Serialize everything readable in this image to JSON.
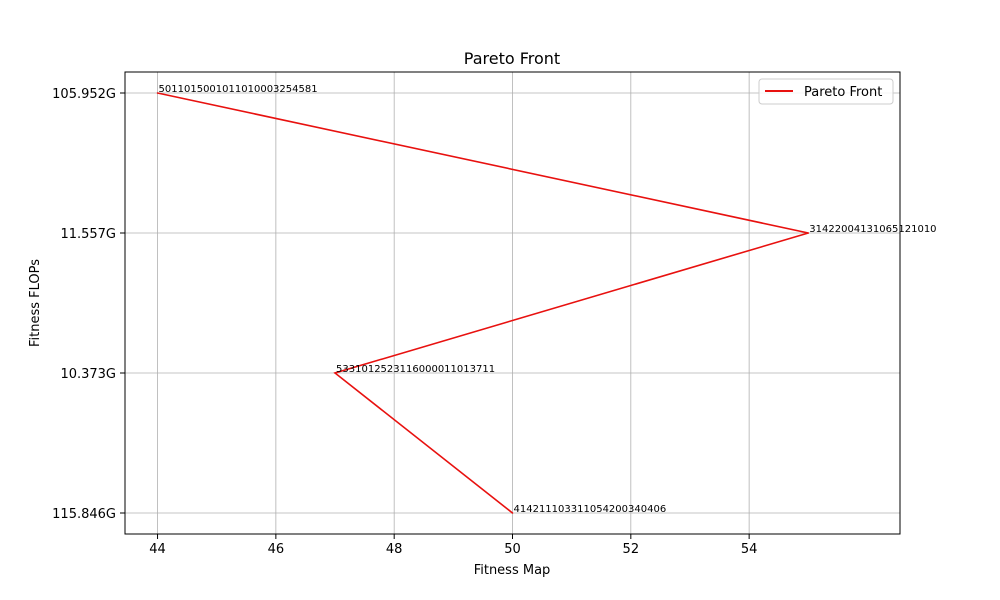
{
  "chart_data": {
    "type": "line",
    "title": "Pareto Front",
    "xlabel": "Fitness Map",
    "ylabel": "Fitness FLOPs",
    "xlim": [
      43.45,
      56.55
    ],
    "x_ticks": [
      44,
      46,
      48,
      50,
      52,
      54
    ],
    "y_categories": [
      "115.846G",
      "10.373G",
      "11.557G",
      "105.952G"
    ],
    "grid": true,
    "legend_position": "top-right",
    "series": [
      {
        "name": "Pareto Front",
        "color": "#e8110f",
        "points": [
          {
            "x": 44,
            "y": "105.952G",
            "label": "5011015001011010003254581"
          },
          {
            "x": 55,
            "y": "11.557G",
            "label": "31422004131065121010"
          },
          {
            "x": 47,
            "y": "10.373G",
            "label": "5331012523116000011013711"
          },
          {
            "x": 50,
            "y": "115.846G",
            "label": "414211103311054200340406"
          }
        ]
      }
    ]
  }
}
